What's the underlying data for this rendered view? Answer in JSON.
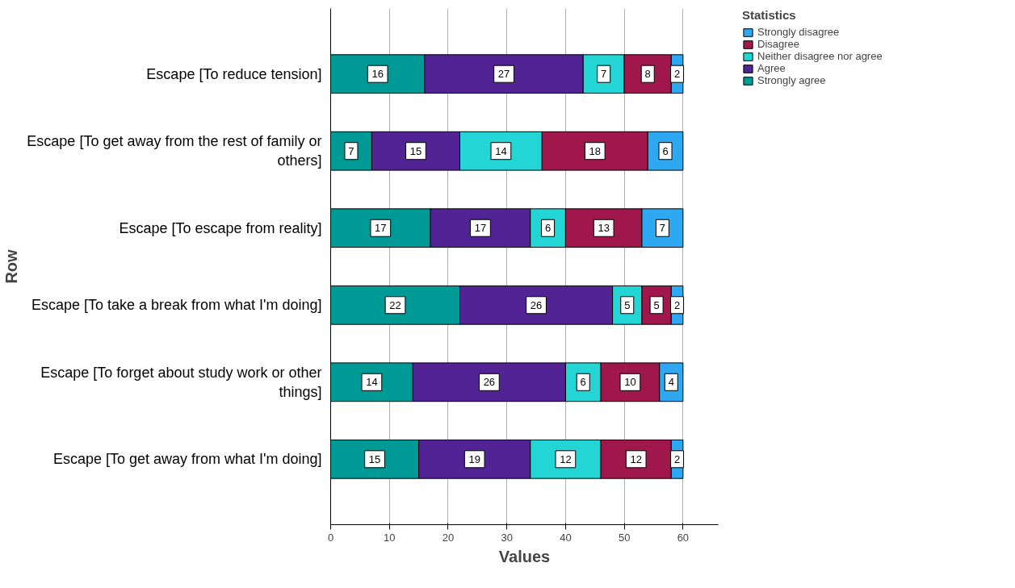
{
  "chart_data": {
    "type": "bar",
    "orientation": "horizontal",
    "stacked": true,
    "xlabel": "Values",
    "ylabel": "Row",
    "legend_title": "Statistics",
    "categories": [
      "Escape [To reduce tension]",
      "Escape [To get away from the rest of family or others]",
      "Escape [To escape from reality]",
      "Escape [To take a break from what I'm doing]",
      "Escape [To forget about study work or other things]",
      "Escape [To get away from what I'm doing]"
    ],
    "series": [
      {
        "name": "Strongly agree",
        "color": "#009a96",
        "values": [
          16,
          7,
          17,
          22,
          14,
          15
        ]
      },
      {
        "name": "Agree",
        "color": "#512394",
        "values": [
          27,
          15,
          17,
          26,
          26,
          19
        ]
      },
      {
        "name": "Neither disagree nor agree",
        "color": "#23d5d5",
        "values": [
          7,
          14,
          6,
          5,
          6,
          12
        ]
      },
      {
        "name": "Disagree",
        "color": "#a0174c",
        "values": [
          8,
          18,
          13,
          5,
          10,
          12
        ]
      },
      {
        "name": "Strongly disagree",
        "color": "#2ea8f0",
        "values": [
          2,
          6,
          7,
          2,
          4,
          2
        ]
      }
    ],
    "xlim": [
      0,
      66
    ],
    "xticks": [
      0,
      10,
      20,
      30,
      40,
      50,
      60
    ],
    "grid": "x",
    "legend": "top right",
    "data_labels": true
  }
}
